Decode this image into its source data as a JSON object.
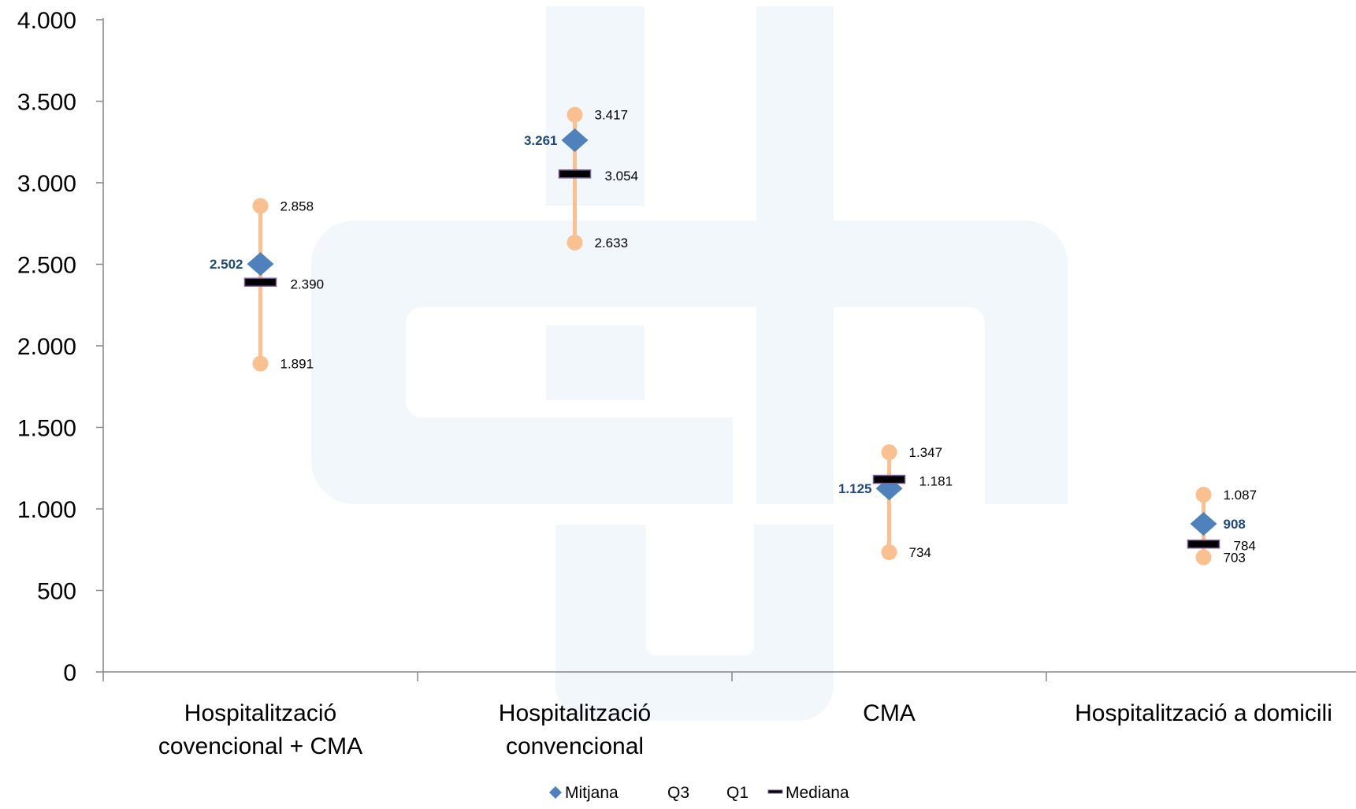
{
  "chart_data": {
    "type": "scatter",
    "title": "",
    "xlabel": "",
    "ylabel": "",
    "ylim": [
      0,
      4000
    ],
    "y_ticks": [
      0,
      500,
      1000,
      1500,
      2000,
      2500,
      3000,
      3500,
      4000
    ],
    "y_tick_labels": [
      "0",
      "500",
      "1.000",
      "1.500",
      "2.000",
      "2.500",
      "3.000",
      "3.500",
      "4.000"
    ],
    "grid": false,
    "categories": [
      [
        "Hospitalització",
        "covencional + CMA"
      ],
      [
        "Hospitalització",
        "convencional"
      ],
      [
        "CMA"
      ],
      [
        "Hospitalització a domicili"
      ]
    ],
    "series": [
      {
        "name": "Mitjana",
        "values": [
          2502,
          3261,
          1125,
          908
        ],
        "labels": [
          "2.502",
          "3.261",
          "1.125",
          "908"
        ],
        "color": "#4f81bd",
        "marker": "diamond"
      },
      {
        "name": "Q3",
        "values": [
          2858,
          3417,
          1347,
          1087
        ],
        "labels": [
          "2.858",
          "3.417",
          "1.347",
          "1.087"
        ],
        "color": "#fac090",
        "marker": "circle"
      },
      {
        "name": "Q1",
        "values": [
          1891,
          2633,
          734,
          703
        ],
        "labels": [
          "1.891",
          "2.633",
          "734",
          "703"
        ],
        "color": "#fac090",
        "marker": "circle"
      },
      {
        "name": "Mediana",
        "values": [
          2390,
          3054,
          1181,
          784
        ],
        "labels": [
          "2.390",
          "3.054",
          "1.181",
          "784"
        ],
        "color": "#000000",
        "marker": "dash"
      }
    ],
    "legend": {
      "position": "bottom",
      "entries": [
        "Mitjana",
        "Q3",
        "Q1",
        "Mediana"
      ]
    },
    "whisker_color": "#fac090",
    "watermark_color": "#f2f7fb"
  }
}
